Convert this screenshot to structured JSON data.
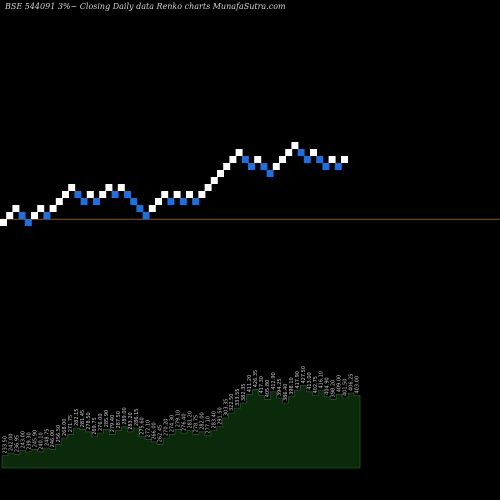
{
  "chart_data": {
    "type": "renko",
    "title": "BSE 544091 3%~  Closing Daily data  Renko  charts MunafaSutra.com",
    "colors": {
      "background": "#000000",
      "up_brick": "#ffffff",
      "down_brick": "#1e6fe0",
      "reference_line": "#8b5a1a",
      "volume_area": "#0b2a0b",
      "volume_edge": "#2e6a2e"
    },
    "bricks": [
      {
        "level": 0,
        "dir": "up"
      },
      {
        "level": 1,
        "dir": "up"
      },
      {
        "level": 2,
        "dir": "up"
      },
      {
        "level": 1,
        "dir": "down"
      },
      {
        "level": 0,
        "dir": "down"
      },
      {
        "level": 1,
        "dir": "up"
      },
      {
        "level": 2,
        "dir": "up"
      },
      {
        "level": 1,
        "dir": "down"
      },
      {
        "level": 2,
        "dir": "up"
      },
      {
        "level": 3,
        "dir": "up"
      },
      {
        "level": 4,
        "dir": "up"
      },
      {
        "level": 5,
        "dir": "up"
      },
      {
        "level": 4,
        "dir": "down"
      },
      {
        "level": 3,
        "dir": "down"
      },
      {
        "level": 4,
        "dir": "up"
      },
      {
        "level": 3,
        "dir": "down"
      },
      {
        "level": 4,
        "dir": "up"
      },
      {
        "level": 5,
        "dir": "up"
      },
      {
        "level": 4,
        "dir": "down"
      },
      {
        "level": 5,
        "dir": "up"
      },
      {
        "level": 4,
        "dir": "down"
      },
      {
        "level": 3,
        "dir": "down"
      },
      {
        "level": 2,
        "dir": "down"
      },
      {
        "level": 1,
        "dir": "down"
      },
      {
        "level": 2,
        "dir": "up"
      },
      {
        "level": 3,
        "dir": "up"
      },
      {
        "level": 4,
        "dir": "up"
      },
      {
        "level": 3,
        "dir": "down"
      },
      {
        "level": 4,
        "dir": "up"
      },
      {
        "level": 3,
        "dir": "down"
      },
      {
        "level": 4,
        "dir": "up"
      },
      {
        "level": 3,
        "dir": "down"
      },
      {
        "level": 4,
        "dir": "up"
      },
      {
        "level": 5,
        "dir": "up"
      },
      {
        "level": 6,
        "dir": "up"
      },
      {
        "level": 7,
        "dir": "up"
      },
      {
        "level": 8,
        "dir": "up"
      },
      {
        "level": 9,
        "dir": "up"
      },
      {
        "level": 10,
        "dir": "up"
      },
      {
        "level": 9,
        "dir": "down"
      },
      {
        "level": 8,
        "dir": "down"
      },
      {
        "level": 9,
        "dir": "up"
      },
      {
        "level": 8,
        "dir": "down"
      },
      {
        "level": 7,
        "dir": "down"
      },
      {
        "level": 8,
        "dir": "up"
      },
      {
        "level": 9,
        "dir": "up"
      },
      {
        "level": 10,
        "dir": "up"
      },
      {
        "level": 11,
        "dir": "up"
      },
      {
        "level": 10,
        "dir": "down"
      },
      {
        "level": 9,
        "dir": "down"
      },
      {
        "level": 10,
        "dir": "up"
      },
      {
        "level": 9,
        "dir": "down"
      },
      {
        "level": 8,
        "dir": "down"
      },
      {
        "level": 9,
        "dir": "up"
      },
      {
        "level": 8,
        "dir": "down"
      },
      {
        "level": 9,
        "dir": "up"
      }
    ],
    "reference_level": 1.4,
    "volume": [
      {
        "value": 10,
        "label": "233.50"
      },
      {
        "value": 12,
        "label": "242.00"
      },
      {
        "value": 11,
        "label": "236.95"
      },
      {
        "value": 14,
        "label": "243.00"
      },
      {
        "value": 13,
        "label": "239.30"
      },
      {
        "value": 15,
        "label": "245.90"
      },
      {
        "value": 13,
        "label": "240.10"
      },
      {
        "value": 16,
        "label": "248.75"
      },
      {
        "value": 15,
        "label": "246.00"
      },
      {
        "value": 19,
        "label": "256.50"
      },
      {
        "value": 24,
        "label": "268.00"
      },
      {
        "value": 27,
        "label": "271.75"
      },
      {
        "value": 32,
        "label": "282.15"
      },
      {
        "value": 31,
        "label": "281.45"
      },
      {
        "value": 29,
        "label": "278.50"
      },
      {
        "value": 25,
        "label": "269.75"
      },
      {
        "value": 28,
        "label": "276.00"
      },
      {
        "value": 31,
        "label": "285.90"
      },
      {
        "value": 27,
        "label": "279.40"
      },
      {
        "value": 30,
        "label": "287.50"
      },
      {
        "value": 33,
        "label": "289.00"
      },
      {
        "value": 29,
        "label": "283.20"
      },
      {
        "value": 32,
        "label": "286.15"
      },
      {
        "value": 25,
        "label": "275.60"
      },
      {
        "value": 23,
        "label": "272.10"
      },
      {
        "value": 21,
        "label": "266.00"
      },
      {
        "value": 19,
        "label": "262.45"
      },
      {
        "value": 24,
        "label": "270.20"
      },
      {
        "value": 27,
        "label": "274.30"
      },
      {
        "value": 31,
        "label": "279.10"
      },
      {
        "value": 28,
        "label": "276.40"
      },
      {
        "value": 30,
        "label": "281.20"
      },
      {
        "value": 27,
        "label": "278.75"
      },
      {
        "value": 29,
        "label": "282.00"
      },
      {
        "value": 26,
        "label": "277.10"
      },
      {
        "value": 30,
        "label": "283.40"
      },
      {
        "value": 33,
        "label": "291.50"
      },
      {
        "value": 40,
        "label": "303.35"
      },
      {
        "value": 44,
        "label": "322.50"
      },
      {
        "value": 48,
        "label": "333.55"
      },
      {
        "value": 52,
        "label": "382.35"
      },
      {
        "value": 59,
        "label": "411.20"
      },
      {
        "value": 63,
        "label": "426.35"
      },
      {
        "value": 58,
        "label": "417.30"
      },
      {
        "value": 55,
        "label": "405.80"
      },
      {
        "value": 61,
        "label": "412.90"
      },
      {
        "value": 56,
        "label": "394.25"
      },
      {
        "value": 52,
        "label": "386.40"
      },
      {
        "value": 57,
        "label": "398.10"
      },
      {
        "value": 62,
        "label": "417.90"
      },
      {
        "value": 66,
        "label": "427.50"
      },
      {
        "value": 61,
        "label": "413.00"
      },
      {
        "value": 58,
        "label": "402.75"
      },
      {
        "value": 62,
        "label": "416.10"
      },
      {
        "value": 57,
        "label": "404.90"
      },
      {
        "value": 55,
        "label": "398.20"
      },
      {
        "value": 59,
        "label": "409.00"
      },
      {
        "value": 56,
        "label": "401.50"
      },
      {
        "value": 60,
        "label": "406.25"
      },
      {
        "value": 58,
        "label": "403.00"
      }
    ]
  }
}
